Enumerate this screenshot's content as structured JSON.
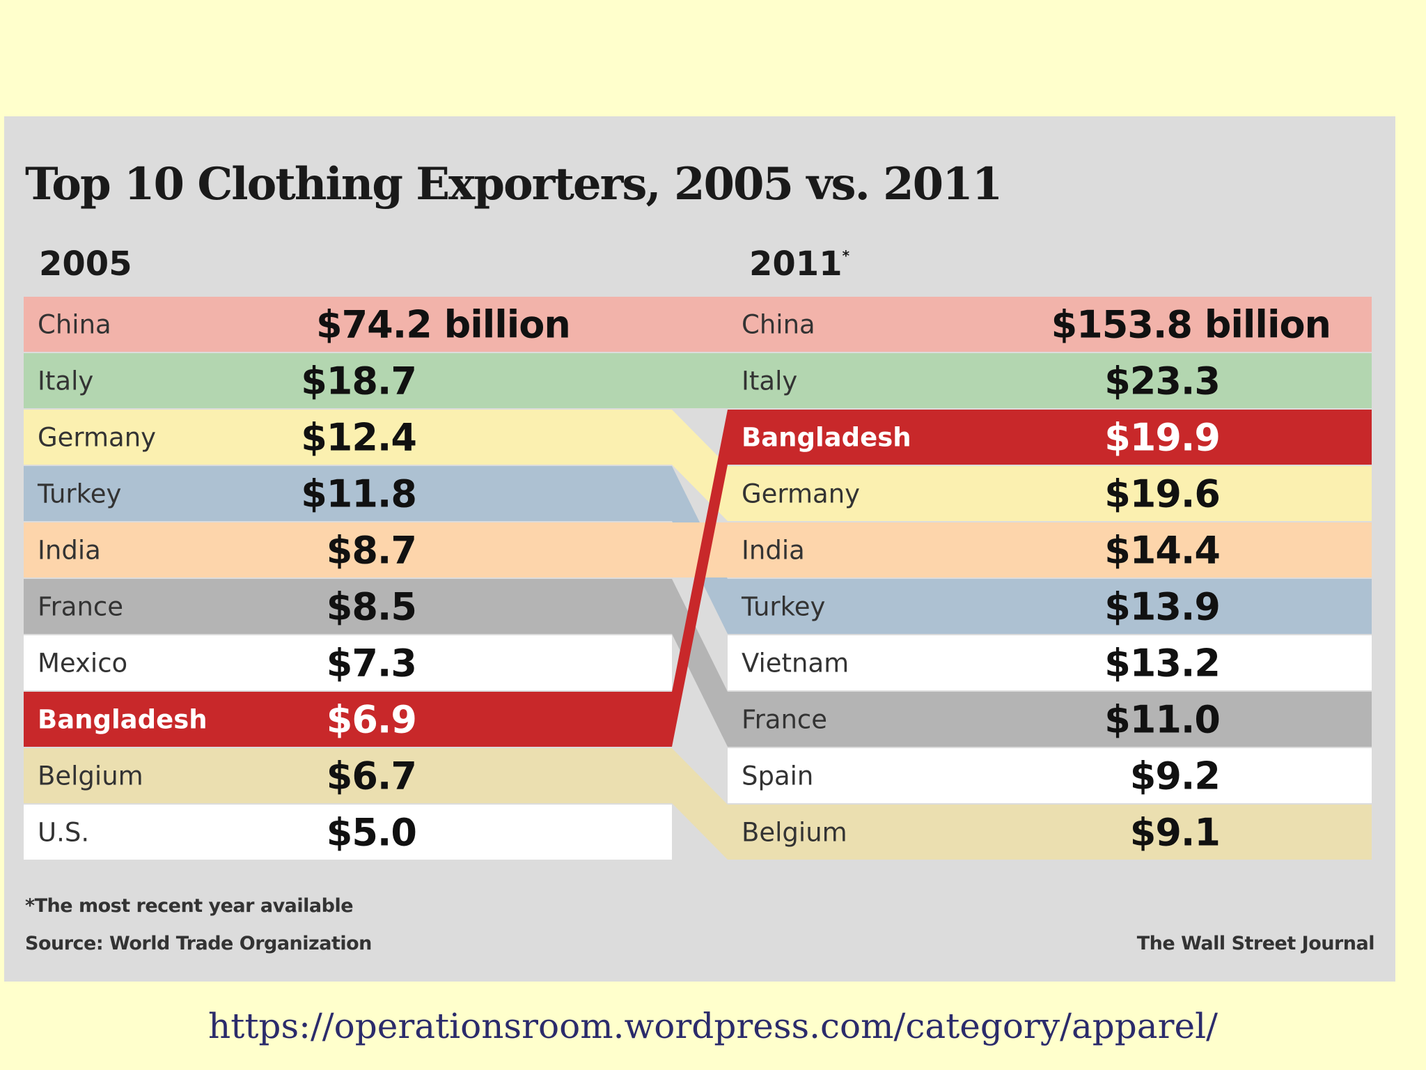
{
  "chart_data": {
    "type": "table",
    "title": "Top 10 Clothing Exporters, 2005 vs. 2011",
    "units": "billion US$",
    "left_year": "2005",
    "right_year": "2011",
    "right_year_marker": "*",
    "left": [
      {
        "country": "China",
        "label": "$74.2 billion",
        "value": 74.2,
        "color": "#f2b3aa"
      },
      {
        "country": "Italy",
        "label": "$18.7",
        "value": 18.7,
        "color": "#b3d6b0"
      },
      {
        "country": "Germany",
        "label": "$12.4",
        "value": 12.4,
        "color": "#fbf0b0"
      },
      {
        "country": "Turkey",
        "label": "$11.8",
        "value": 11.8,
        "color": "#adc1d2"
      },
      {
        "country": "India",
        "label": "$8.7",
        "value": 8.7,
        "color": "#fdd5ab"
      },
      {
        "country": "France",
        "label": "$8.5",
        "value": 8.5,
        "color": "#b4b4b4"
      },
      {
        "country": "Mexico",
        "label": "$7.3",
        "value": 7.3,
        "color": "#ffffff"
      },
      {
        "country": "Bangladesh",
        "label": "$6.9",
        "value": 6.9,
        "color": "#c8282a",
        "highlight": true
      },
      {
        "country": "Belgium",
        "label": "$6.7",
        "value": 6.7,
        "color": "#ebdfb0"
      },
      {
        "country": "U.S.",
        "label": "$5.0",
        "value": 5.0,
        "color": "#ffffff"
      }
    ],
    "right": [
      {
        "country": "China",
        "label": "$153.8 billion",
        "value": 153.8,
        "color": "#f2b3aa"
      },
      {
        "country": "Italy",
        "label": "$23.3",
        "value": 23.3,
        "color": "#b3d6b0"
      },
      {
        "country": "Bangladesh",
        "label": "$19.9",
        "value": 19.9,
        "color": "#c8282a",
        "highlight": true
      },
      {
        "country": "Germany",
        "label": "$19.6",
        "value": 19.6,
        "color": "#fbf0b0"
      },
      {
        "country": "India",
        "label": "$14.4",
        "value": 14.4,
        "color": "#fdd5ab"
      },
      {
        "country": "Turkey",
        "label": "$13.9",
        "value": 13.9,
        "color": "#adc1d2"
      },
      {
        "country": "Vietnam",
        "label": "$13.2",
        "value": 13.2,
        "color": "#ffffff"
      },
      {
        "country": "France",
        "label": "$11.0",
        "value": 11.0,
        "color": "#b4b4b4"
      },
      {
        "country": "Spain",
        "label": "$9.2",
        "value": 9.2,
        "color": "#ffffff"
      },
      {
        "country": "Belgium",
        "label": "$9.1",
        "value": 9.1,
        "color": "#ebdfb0"
      }
    ],
    "footnote": "*The most recent year available",
    "source": "Source: World Trade Organization",
    "credit": "The Wall Street Journal"
  },
  "source_url": "https://operationsroom.wordpress.com/category/apparel/"
}
